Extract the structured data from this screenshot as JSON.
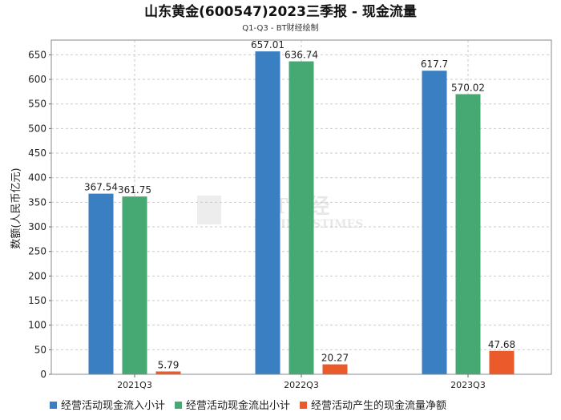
{
  "chart_data": {
    "type": "bar",
    "title": "山东黄金(600547)2023三季报 - 现金流量",
    "subtitle": "Q1-Q3 - BT财经绘制",
    "xlabel": "",
    "ylabel": "数额(人民币亿元)",
    "ylim": [
      0,
      680
    ],
    "yticks": [
      0,
      50,
      100,
      150,
      200,
      250,
      300,
      350,
      400,
      450,
      500,
      550,
      600,
      650
    ],
    "grid": true,
    "legend_position": "bottom",
    "categories": [
      "2021Q3",
      "2022Q3",
      "2023Q3"
    ],
    "series": [
      {
        "name": "经营活动现金流入小计",
        "color": "#3a7fc1",
        "values": [
          367.54,
          657.01,
          617.7
        ],
        "labels": [
          "367.54",
          "657.01",
          "617.7"
        ]
      },
      {
        "name": "经营活动现金流出小计",
        "color": "#46a974",
        "values": [
          361.75,
          636.74,
          570.02
        ],
        "labels": [
          "361.75",
          "636.74",
          "570.02"
        ]
      },
      {
        "name": "经营活动产生的现金流量净额",
        "color": "#ea5a2a",
        "values": [
          5.79,
          20.27,
          47.68
        ],
        "labels": [
          "5.79",
          "20.27",
          "47.68"
        ]
      }
    ]
  },
  "watermark": {
    "text": "BT财经",
    "subtext": "BUSINESSTIMES"
  }
}
